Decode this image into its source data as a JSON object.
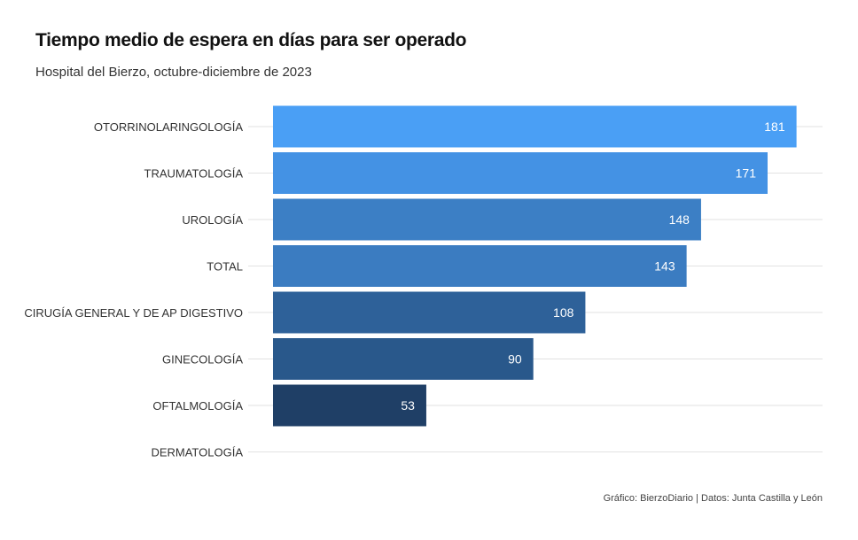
{
  "title": "Tiempo medio de espera en días para ser operado",
  "subtitle": "Hospital del Bierzo, octubre-diciembre de 2023",
  "source": "Gráfico: BierzoDiario | Datos: Junta Castilla y León",
  "chart_data": {
    "type": "bar",
    "orientation": "horizontal",
    "categories": [
      "OTORRINOLARINGOLOGÍA",
      "TRAUMATOLOGÍA",
      "UROLOGÍA",
      "TOTAL",
      "CIRUGÍA GENERAL Y DE AP DIGESTIVO",
      "GINECOLOGÍA",
      "OFTALMOLOGÍA",
      "DERMATOLOGÍA"
    ],
    "values": [
      181,
      171,
      148,
      143,
      108,
      90,
      53,
      null
    ],
    "value_labels": [
      "181",
      "171",
      "148",
      "143",
      "108",
      "90",
      "53",
      ""
    ],
    "colors": [
      "#4a9ff5",
      "#4492e4",
      "#3c7fc5",
      "#3b7cc1",
      "#2e6199",
      "#29588b",
      "#1f3f66",
      "#1f3f66"
    ],
    "xlim": [
      0,
      190
    ],
    "grid": "horizontal"
  }
}
